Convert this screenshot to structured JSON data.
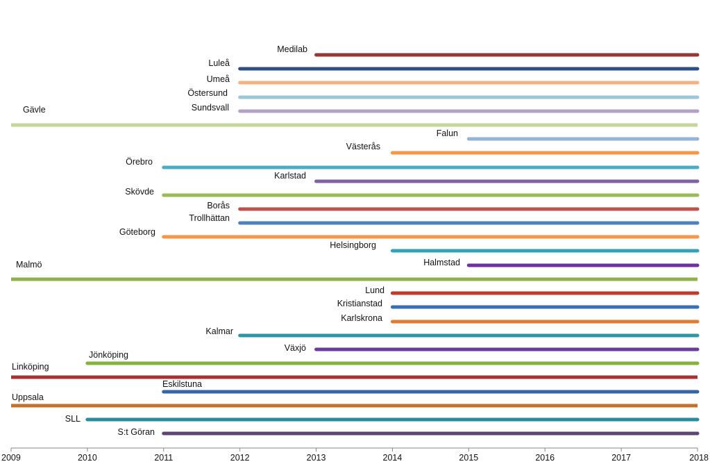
{
  "chart_data": {
    "type": "timeline",
    "title": "",
    "xlabel": "",
    "ylabel": "",
    "xlim": [
      2009,
      2018
    ],
    "x_ticks": [
      "2009",
      "2010",
      "2011",
      "2012",
      "2013",
      "2014",
      "2015",
      "2016",
      "2017",
      "2018"
    ],
    "grid": false,
    "legend": "none",
    "series": [
      {
        "name": "Medilab",
        "start": 2013,
        "end": 2018,
        "color": "#953735"
      },
      {
        "name": "Luleå",
        "start": 2012,
        "end": 2018,
        "color": "#2e4f86"
      },
      {
        "name": "Umeå",
        "start": 2012,
        "end": 2018,
        "color": "#f4b183"
      },
      {
        "name": "Östersund",
        "start": 2012,
        "end": 2018,
        "color": "#9dc7d6"
      },
      {
        "name": "Sundsvall",
        "start": 2012,
        "end": 2018,
        "color": "#b3a2c7"
      },
      {
        "name": "Gävle",
        "start": 2009,
        "end": 2018,
        "color": "#c3d69b"
      },
      {
        "name": "Falun",
        "start": 2015,
        "end": 2018,
        "color": "#95b3d7"
      },
      {
        "name": "Västerås",
        "start": 2014,
        "end": 2018,
        "color": "#f79646"
      },
      {
        "name": "Örebro",
        "start": 2011,
        "end": 2018,
        "color": "#4bacc6"
      },
      {
        "name": "Karlstad",
        "start": 2013,
        "end": 2018,
        "color": "#8064a2"
      },
      {
        "name": "Skövde",
        "start": 2011,
        "end": 2018,
        "color": "#9bbb59"
      },
      {
        "name": "Borås",
        "start": 2012,
        "end": 2018,
        "color": "#c0504d"
      },
      {
        "name": "Trollhättan",
        "start": 2012,
        "end": 2018,
        "color": "#4f81bd"
      },
      {
        "name": "Göteborg",
        "start": 2011,
        "end": 2018,
        "color": "#f79646"
      },
      {
        "name": "Helsingborg",
        "start": 2014,
        "end": 2018,
        "color": "#31a3b5"
      },
      {
        "name": "Halmstad",
        "start": 2015,
        "end": 2018,
        "color": "#7030a0"
      },
      {
        "name": "Malmö",
        "start": 2009,
        "end": 2018,
        "color": "#8fb04b"
      },
      {
        "name": "Lund",
        "start": 2014,
        "end": 2018,
        "color": "#c0392b"
      },
      {
        "name": "Kristianstad",
        "start": 2014,
        "end": 2018,
        "color": "#3a6fb5"
      },
      {
        "name": "Karlskrona",
        "start": 2014,
        "end": 2018,
        "color": "#e07b2f"
      },
      {
        "name": "Kalmar",
        "start": 2012,
        "end": 2018,
        "color": "#2e97a6"
      },
      {
        "name": "Växjö",
        "start": 2013,
        "end": 2018,
        "color": "#6a3d9a"
      },
      {
        "name": "Jönköping",
        "start": 2010,
        "end": 2018,
        "color": "#86b23c"
      },
      {
        "name": "Linköping",
        "start": 2009,
        "end": 2018,
        "color": "#a83232"
      },
      {
        "name": "Eskilstuna",
        "start": 2011,
        "end": 2018,
        "color": "#3465a4"
      },
      {
        "name": "Uppsala",
        "start": 2009,
        "end": 2018,
        "color": "#c2702a"
      },
      {
        "name": "SLL",
        "start": 2010,
        "end": 2018,
        "color": "#2a8c9c"
      },
      {
        "name": "S:t Göran",
        "start": 2011,
        "end": 2018,
        "color": "#5c4378"
      }
    ]
  }
}
